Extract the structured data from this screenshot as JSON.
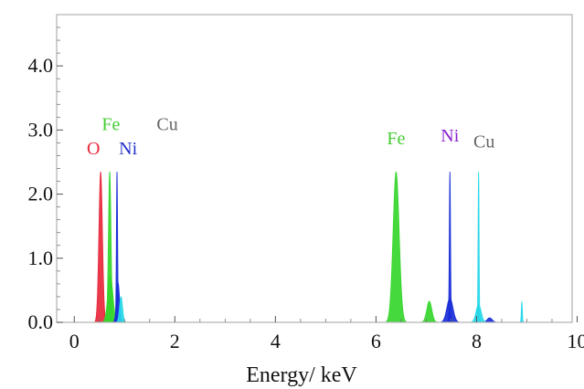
{
  "chart_data": {
    "type": "area",
    "title": "",
    "xlabel": "Energy/ keV",
    "ylabel": "",
    "xlim": [
      -0.35,
      9.9
    ],
    "ylim": [
      0,
      4.8
    ],
    "x_ticks": [
      0,
      2,
      4,
      6,
      8,
      10
    ],
    "y_ticks": [
      0.0,
      1.0,
      2.0,
      3.0,
      4.0
    ],
    "y_tick_labels": [
      "0.0",
      "1.0",
      "2.0",
      "3.0",
      "4.0"
    ],
    "grid": false,
    "series": [
      {
        "element": "O",
        "color": "#e8283c",
        "peaks": [
          {
            "x": 0.525,
            "height": 2.35,
            "width": 0.035
          }
        ]
      },
      {
        "element": "Fe",
        "color": "#36d62c",
        "peaks": [
          {
            "x": 0.705,
            "height": 2.35,
            "width": 0.025
          },
          {
            "x": 0.718,
            "height": 0.72,
            "width": 0.05
          },
          {
            "x": 6.4,
            "height": 2.35,
            "width": 0.06
          },
          {
            "x": 7.06,
            "height": 0.33,
            "width": 0.05
          }
        ]
      },
      {
        "element": "Ni",
        "color": "#1a2fd8",
        "peaks": [
          {
            "x": 0.85,
            "height": 2.35,
            "width": 0.012
          },
          {
            "x": 0.87,
            "height": 0.62,
            "width": 0.03
          },
          {
            "x": 7.47,
            "height": 2.35,
            "width": 0.012
          },
          {
            "x": 7.47,
            "height": 0.38,
            "width": 0.06
          },
          {
            "x": 8.26,
            "height": 0.07,
            "width": 0.05
          }
        ]
      },
      {
        "element": "Cu",
        "color": "#26d8e8",
        "peaks": [
          {
            "x": 0.93,
            "height": 0.4,
            "width": 0.03
          },
          {
            "x": 8.04,
            "height": 2.35,
            "width": 0.01
          },
          {
            "x": 8.04,
            "height": 0.28,
            "width": 0.05
          },
          {
            "x": 8.9,
            "height": 0.32,
            "width": 0.01
          }
        ]
      }
    ],
    "annotations": [
      {
        "text": "O",
        "x": 0.38,
        "y": 2.62,
        "color": "#e8283c"
      },
      {
        "text": "Fe",
        "x": 0.73,
        "y": 3.0,
        "color": "#44cc33"
      },
      {
        "text": "Ni",
        "x": 1.07,
        "y": 2.62,
        "color": "#2233cc"
      },
      {
        "text": "Cu",
        "x": 1.85,
        "y": 3.0,
        "color": "#666666"
      },
      {
        "text": "Fe",
        "x": 6.4,
        "y": 2.78,
        "color": "#44cc33"
      },
      {
        "text": "Ni",
        "x": 7.47,
        "y": 2.82,
        "color": "#8a22cc"
      },
      {
        "text": "Cu",
        "x": 8.15,
        "y": 2.73,
        "color": "#666666"
      }
    ]
  }
}
